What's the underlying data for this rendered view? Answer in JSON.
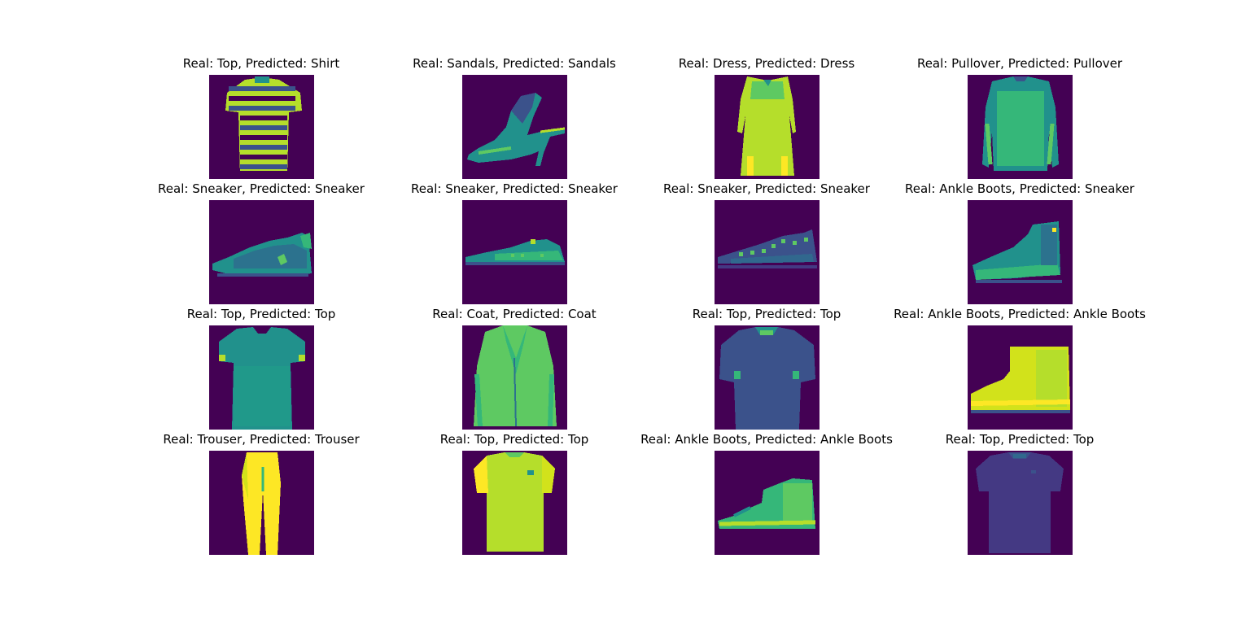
{
  "figure": {
    "background": "#ffffff",
    "image_background": "#440154",
    "colormap": "viridis",
    "cells": [
      {
        "title": "Real: Top, Predicted: Shirt",
        "item": "striped-shirt",
        "icon": "shirt-icon"
      },
      {
        "title": "Real: Sandals, Predicted: Sandals",
        "item": "sandal",
        "icon": "sandal-icon"
      },
      {
        "title": "Real: Dress, Predicted: Dress",
        "item": "dress",
        "icon": "dress-icon"
      },
      {
        "title": "Real: Pullover, Predicted: Pullover",
        "item": "pullover",
        "icon": "pullover-icon"
      },
      {
        "title": "Real: Sneaker, Predicted: Sneaker",
        "item": "sneaker",
        "icon": "sneaker-icon"
      },
      {
        "title": "Real: Sneaker, Predicted: Sneaker",
        "item": "sneaker-flat",
        "icon": "sneaker-icon"
      },
      {
        "title": "Real: Sneaker, Predicted: Sneaker",
        "item": "sneaker-dark",
        "icon": "sneaker-icon"
      },
      {
        "title": "Real: Ankle Boots, Predicted: Sneaker",
        "item": "high-top",
        "icon": "boot-icon"
      },
      {
        "title": "Real: Top, Predicted: Top",
        "item": "tshirt-teal",
        "icon": "tshirt-icon"
      },
      {
        "title": "Real: Coat, Predicted: Coat",
        "item": "coat",
        "icon": "coat-icon"
      },
      {
        "title": "Real: Top, Predicted: Top",
        "item": "tshirt-dark",
        "icon": "tshirt-icon"
      },
      {
        "title": "Real: Ankle Boots, Predicted: Ankle Boots",
        "item": "ankle-boot-yellow",
        "icon": "boot-icon"
      },
      {
        "title": "Real: Trouser, Predicted: Trouser",
        "item": "trouser",
        "icon": "trouser-icon"
      },
      {
        "title": "Real: Top, Predicted: Top",
        "item": "tshirt-yellow",
        "icon": "tshirt-icon"
      },
      {
        "title": "Real: Ankle Boots, Predicted: Ankle Boots",
        "item": "ankle-boot",
        "icon": "boot-icon"
      },
      {
        "title": "Real: Top, Predicted: Top",
        "item": "tshirt-purple",
        "icon": "tshirt-icon"
      }
    ]
  }
}
